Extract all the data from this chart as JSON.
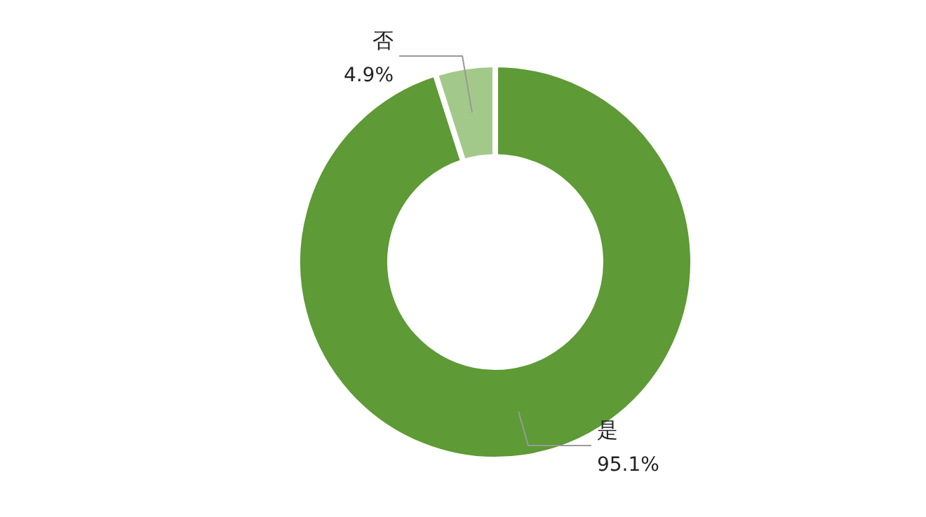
{
  "chart_data": {
    "type": "donut",
    "categories": [
      "是",
      "否"
    ],
    "values": [
      95.1,
      4.9
    ],
    "colors": [
      "#5e9a35",
      "#a3c98a"
    ],
    "value_labels": [
      "95.1%",
      "4.9%"
    ]
  }
}
